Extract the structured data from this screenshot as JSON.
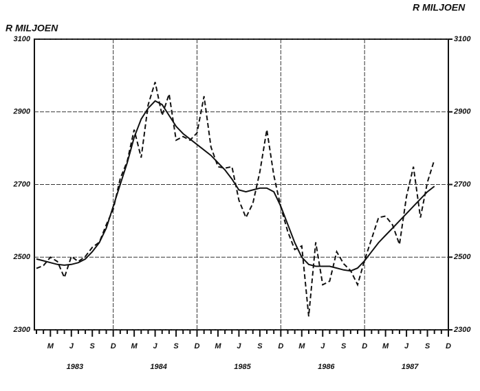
{
  "chart_data": {
    "type": "line",
    "y_label": "R MILJOEN",
    "y2_label": "R MILJOEN",
    "categories": [
      null,
      null,
      "M",
      null,
      null,
      "J",
      null,
      null,
      "S",
      null,
      null,
      "D",
      null,
      null,
      "M",
      null,
      null,
      "J",
      null,
      null,
      "S",
      null,
      null,
      "D",
      null,
      null,
      "M",
      null,
      null,
      "J",
      null,
      null,
      "S",
      null,
      null,
      "D",
      null,
      null,
      "M",
      null,
      null,
      "J",
      null,
      null,
      "S",
      null,
      null,
      "D",
      null,
      null,
      "M",
      null,
      null,
      "J",
      null,
      null,
      "S",
      null,
      null,
      "D"
    ],
    "year_labels": [
      "1983",
      "1984",
      "1985",
      "1986",
      "1987"
    ],
    "series": [
      {
        "style": "dashed",
        "color": "#111",
        "values": [
          2469,
          2477,
          2500,
          2488,
          2444,
          2502,
          2488,
          2502,
          2527,
          2541,
          2589,
          2632,
          2716,
          2764,
          2851,
          2774,
          2919,
          2982,
          2890,
          2949,
          2822,
          2832,
          2822,
          2842,
          2943,
          2803,
          2749,
          2745,
          2749,
          2657,
          2609,
          2648,
          2735,
          2851,
          2725,
          2638,
          2570,
          2521,
          2531,
          2337,
          2541,
          2424,
          2434,
          2515,
          2482,
          2463,
          2424,
          2492,
          2550,
          2609,
          2613,
          2589,
          2535,
          2667,
          2749,
          2609,
          2706,
          2768,
          null,
          null
        ]
      },
      {
        "style": "solid",
        "color": "#111",
        "values": [
          2495,
          2490,
          2485,
          2480,
          2478,
          2480,
          2485,
          2495,
          2515,
          2540,
          2580,
          2640,
          2700,
          2760,
          2830,
          2880,
          2910,
          2930,
          2920,
          2890,
          2860,
          2840,
          2825,
          2810,
          2795,
          2780,
          2760,
          2740,
          2715,
          2685,
          2680,
          2685,
          2690,
          2690,
          2680,
          2640,
          2590,
          2540,
          2500,
          2480,
          2475,
          2475,
          2475,
          2470,
          2465,
          2462,
          2470,
          2490,
          2515,
          2540,
          2560,
          2580,
          2600,
          2620,
          2640,
          2660,
          2680,
          2695,
          null,
          null
        ]
      }
    ],
    "ylim": [
      2300,
      3100
    ],
    "yticks": [
      2300,
      2500,
      2700,
      2900,
      3100
    ],
    "y2lim": [
      2300,
      3100
    ],
    "y2ticks": [
      2300,
      2500,
      2700,
      2900,
      3100
    ],
    "grid": true
  }
}
